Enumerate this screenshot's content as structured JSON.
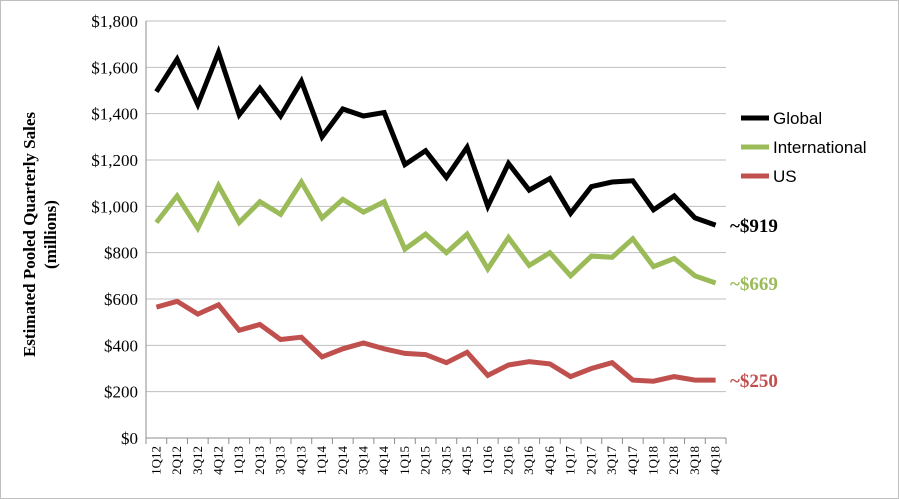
{
  "chart_data": {
    "type": "line",
    "title": "",
    "xlabel": "",
    "ylabel": "Estimated Pooled Quarterly Sales",
    "ylabel_sub": "(millions)",
    "ylim": [
      0,
      1800
    ],
    "y_ticks": [
      0,
      200,
      400,
      600,
      800,
      1000,
      1200,
      1400,
      1600,
      1800
    ],
    "y_tick_labels": [
      "$0",
      "$200",
      "$400",
      "$600",
      "$800",
      "$1,000",
      "$1,200",
      "$1,400",
      "$1,600",
      "$1,800"
    ],
    "grid": true,
    "legend_position": "right",
    "categories": [
      "1Q12",
      "2Q12",
      "3Q12",
      "4Q12",
      "1Q13",
      "2Q13",
      "3Q13",
      "4Q13",
      "1Q14",
      "2Q14",
      "3Q14",
      "4Q14",
      "1Q15",
      "2Q15",
      "3Q15",
      "4Q15",
      "1Q16",
      "2Q16",
      "3Q16",
      "4Q16",
      "1Q17",
      "2Q17",
      "3Q17",
      "4Q17",
      "1Q18",
      "2Q18",
      "3Q18",
      "4Q18"
    ],
    "series": [
      {
        "name": "Global",
        "color": "#000000",
        "end_label": "~$919",
        "values": [
          1495,
          1635,
          1440,
          1665,
          1395,
          1510,
          1390,
          1540,
          1300,
          1420,
          1390,
          1405,
          1180,
          1240,
          1125,
          1255,
          1000,
          1185,
          1070,
          1120,
          970,
          1085,
          1105,
          1110,
          985,
          1045,
          950,
          919
        ]
      },
      {
        "name": "International",
        "color": "#9bbb59",
        "end_label": "~$669",
        "values": [
          930,
          1045,
          905,
          1090,
          930,
          1020,
          965,
          1105,
          950,
          1030,
          975,
          1020,
          815,
          880,
          800,
          880,
          730,
          865,
          745,
          800,
          700,
          785,
          780,
          860,
          740,
          775,
          700,
          669
        ]
      },
      {
        "name": "US",
        "color": "#c0504d",
        "end_label": "~$250",
        "values": [
          565,
          590,
          535,
          575,
          465,
          490,
          425,
          435,
          350,
          385,
          410,
          385,
          365,
          360,
          325,
          370,
          270,
          315,
          330,
          320,
          265,
          300,
          325,
          250,
          245,
          265,
          250,
          250
        ]
      }
    ]
  }
}
